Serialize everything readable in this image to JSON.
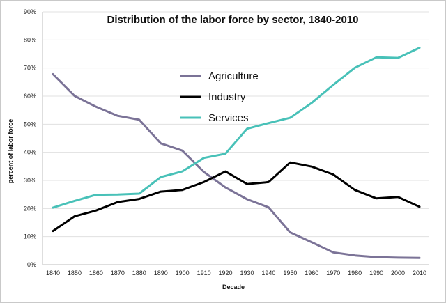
{
  "chart_data": {
    "type": "line",
    "title": "Distribution of the labor force by sector, 1840-2010",
    "xlabel": "Decade",
    "ylabel": "percent of labor force",
    "x": [
      "1840",
      "1850",
      "1860",
      "1870",
      "1880",
      "1890",
      "1900",
      "1910",
      "1920",
      "1930",
      "1940",
      "1950",
      "1960",
      "1970",
      "1980",
      "1990",
      "2000",
      "2010"
    ],
    "ylim": [
      0,
      90
    ],
    "yticks": [
      "0%",
      "10%",
      "20%",
      "30%",
      "40%",
      "50%",
      "60%",
      "70%",
      "80%",
      "90%"
    ],
    "grid": true,
    "legend_position": "center",
    "series": [
      {
        "name": "Agriculture",
        "color": "#7b7397",
        "values": [
          67.8,
          60.1,
          56.2,
          53.0,
          51.6,
          43.2,
          40.6,
          33.0,
          27.5,
          23.3,
          20.4,
          11.5,
          8.0,
          4.4,
          3.3,
          2.7,
          2.5,
          2.4
        ]
      },
      {
        "name": "Industry",
        "color": "#000000",
        "values": [
          12.0,
          17.2,
          19.3,
          22.3,
          23.4,
          26.0,
          26.6,
          29.4,
          33.2,
          28.7,
          29.4,
          36.4,
          34.9,
          32.1,
          26.6,
          23.6,
          24.1,
          20.6
        ]
      },
      {
        "name": "Services",
        "color": "#48c1b8",
        "values": [
          20.3,
          22.7,
          24.9,
          25.0,
          25.3,
          31.2,
          33.2,
          38.0,
          39.5,
          48.4,
          50.4,
          52.3,
          57.6,
          64.0,
          70.1,
          73.8,
          73.6,
          77.2
        ]
      }
    ]
  }
}
